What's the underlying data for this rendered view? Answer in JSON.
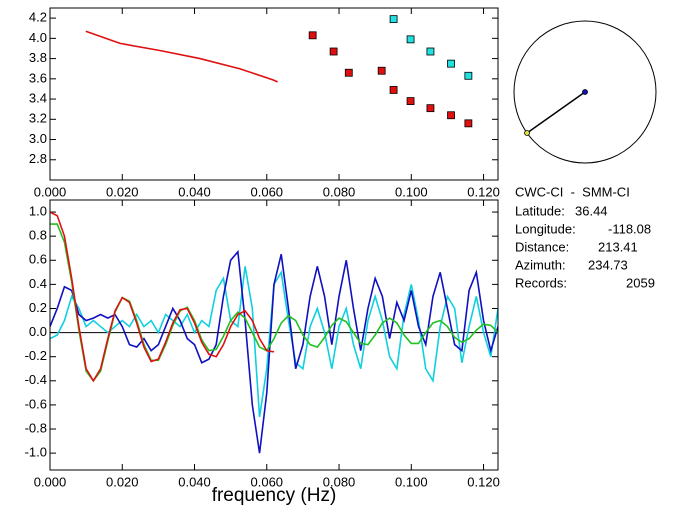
{
  "chart_data": [
    {
      "type": "scatter",
      "xlim": [
        0,
        0.124
      ],
      "ylim": [
        2.6,
        4.3
      ],
      "xticks": [
        {
          "value": 0,
          "label": "0.000"
        },
        {
          "value": 0.02,
          "label": "0.020"
        },
        {
          "value": 0.04,
          "label": "0.040"
        },
        {
          "value": 0.06,
          "label": "0.060"
        },
        {
          "value": 0.08,
          "label": "0.080"
        },
        {
          "value": 0.1,
          "label": "0.100"
        },
        {
          "value": 0.12,
          "label": "0.120"
        }
      ],
      "yticks": [
        4.2,
        {
          "value": 4.0,
          "label": "4.0"
        },
        3.8,
        3.6,
        3.4,
        3.2,
        {
          "value": 3.0,
          "label": "3.0"
        },
        2.8
      ],
      "series": [
        {
          "color": "#e01010",
          "style": "line",
          "x": [
            0.0099,
            0.0194,
            0.0304,
            0.0415,
            0.0525,
            0.0617,
            0.063
          ],
          "values": [
            4.07,
            3.95,
            3.88,
            3.8,
            3.7,
            3.59,
            3.57
          ]
        },
        {
          "color": "#e01010",
          "style": "markers",
          "x": [
            0.0727,
            0.0785,
            0.0827,
            0.0918,
            0.0951,
            0.0998,
            0.1053,
            0.111,
            0.1158
          ],
          "values": [
            4.03,
            3.87,
            3.66,
            3.68,
            3.49,
            3.38,
            3.31,
            3.24,
            3.16
          ]
        },
        {
          "color": "#20e0e0",
          "style": "markers",
          "x": [
            0.0951,
            0.0998,
            0.1053,
            0.111,
            0.1158
          ],
          "values": [
            4.19,
            3.99,
            3.87,
            3.75,
            3.63
          ]
        }
      ]
    },
    {
      "type": "line",
      "xlabel": "frequency (Hz)",
      "xlim": [
        0,
        0.124
      ],
      "ylim": [
        -1.14,
        1.1
      ],
      "zero_line": true,
      "xticks": [
        {
          "value": 0,
          "label": "0.000"
        },
        {
          "value": 0.02,
          "label": "0.020"
        },
        {
          "value": 0.04,
          "label": "0.040"
        },
        {
          "value": 0.06,
          "label": "0.060"
        },
        {
          "value": 0.08,
          "label": "0.080"
        },
        {
          "value": 0.1,
          "label": "0.100"
        },
        {
          "value": 0.12,
          "label": "0.120"
        }
      ],
      "yticks": [
        {
          "value": 1.0,
          "label": "1.0"
        },
        0.8,
        0.6,
        0.4,
        0.2,
        {
          "value": 0,
          "label": "0.0"
        },
        -0.2,
        -0.4,
        -0.6,
        -0.8,
        {
          "value": -1.0,
          "label": "-1.0"
        }
      ],
      "x": [
        0,
        0.002,
        0.004,
        0.006,
        0.008,
        0.01,
        0.012,
        0.014,
        0.016,
        0.018,
        0.02,
        0.022,
        0.024,
        0.026,
        0.028,
        0.03,
        0.032,
        0.034,
        0.036,
        0.038,
        0.04,
        0.042,
        0.044,
        0.046,
        0.048,
        0.05,
        0.052,
        0.054,
        0.056,
        0.058,
        0.06,
        0.062,
        0.064,
        0.066,
        0.068,
        0.07,
        0.072,
        0.074,
        0.076,
        0.078,
        0.08,
        0.082,
        0.084,
        0.086,
        0.088,
        0.09,
        0.092,
        0.094,
        0.096,
        0.098,
        0.1,
        0.102,
        0.104,
        0.106,
        0.108,
        0.11,
        0.112,
        0.114,
        0.116,
        0.118,
        0.12,
        0.122,
        0.124
      ],
      "series": [
        {
          "color": "#10d0e0",
          "values": [
            -0.05,
            -0.02,
            0.1,
            0.3,
            0.2,
            0.05,
            0.1,
            0.05,
            0.0,
            0.05,
            0.1,
            0.05,
            0.15,
            0.05,
            0.1,
            0.0,
            0.15,
            0.1,
            0.05,
            0.15,
            0.0,
            0.1,
            0.05,
            0.35,
            0.45,
            0.1,
            0.05,
            0.55,
            0.2,
            -0.7,
            -0.3,
            0.4,
            0.5,
            0.1,
            -0.25,
            -0.3,
            0.05,
            0.2,
            0.0,
            -0.3,
            0.05,
            0.2,
            -0.1,
            -0.3,
            0.1,
            0.3,
            0.1,
            -0.2,
            -0.3,
            0.15,
            0.4,
            0.1,
            -0.3,
            -0.4,
            0.05,
            0.3,
            0.2,
            -0.25,
            0.05,
            0.3,
            0.0,
            -0.2,
            0.2
          ]
        },
        {
          "color": "#1010c0",
          "values": [
            0.05,
            0.2,
            0.38,
            0.35,
            0.15,
            0.1,
            0.12,
            0.15,
            0.12,
            0.15,
            0.05,
            -0.1,
            -0.12,
            -0.05,
            -0.15,
            -0.1,
            0.05,
            0.2,
            0.1,
            -0.05,
            -0.1,
            -0.25,
            -0.22,
            -0.1,
            0.3,
            0.6,
            0.67,
            0.1,
            -0.6,
            -1.0,
            -0.5,
            0.4,
            0.65,
            0.2,
            -0.3,
            -0.1,
            0.3,
            0.55,
            0.3,
            -0.1,
            0.3,
            0.6,
            0.2,
            -0.15,
            0.2,
            0.45,
            0.3,
            -0.05,
            0.25,
            0.1,
            0.35,
            0.05,
            -0.1,
            0.3,
            0.5,
            0.2,
            -0.1,
            -0.15,
            0.35,
            0.5,
            0.1,
            -0.15,
            0.05
          ]
        },
        {
          "color": "#22c022",
          "values": [
            0.9,
            0.9,
            0.75,
            0.42,
            0.02,
            -0.32,
            -0.4,
            -0.32,
            -0.07,
            0.17,
            0.29,
            0.26,
            0.1,
            -0.1,
            -0.23,
            -0.23,
            -0.1,
            0.06,
            0.18,
            0.21,
            0.1,
            -0.06,
            -0.15,
            -0.14,
            -0.03,
            0.1,
            0.17,
            0.12,
            0.0,
            -0.12,
            -0.15,
            -0.05,
            0.08,
            0.14,
            0.1,
            -0.02,
            -0.1,
            -0.12,
            -0.04,
            0.06,
            0.12,
            0.09,
            0.0,
            -0.09,
            -0.1,
            -0.02,
            0.08,
            0.12,
            0.08,
            -0.02,
            -0.09,
            -0.09,
            0.0,
            0.08,
            0.1,
            0.05,
            -0.04,
            -0.08,
            -0.05,
            0.02,
            0.07,
            0.06,
            0.0
          ]
        },
        {
          "color": "#e01010",
          "values": [
            1.0,
            0.97,
            0.8,
            0.45,
            0.05,
            -0.3,
            -0.4,
            -0.3,
            -0.05,
            0.18,
            0.29,
            0.25,
            0.08,
            -0.12,
            -0.24,
            -0.22,
            -0.08,
            0.08,
            0.19,
            0.2,
            0.08,
            -0.08,
            -0.18,
            -0.2,
            -0.1,
            0.05,
            0.15,
            0.18,
            0.1,
            -0.05,
            -0.15,
            -0.16,
            null,
            null,
            null,
            null,
            null,
            null,
            null,
            null,
            null,
            null,
            null,
            null,
            null,
            null,
            null,
            null,
            null,
            null,
            null,
            null,
            null,
            null,
            null,
            null,
            null,
            null,
            null,
            null,
            null,
            null,
            null
          ]
        }
      ]
    }
  ],
  "info": {
    "title": "CWC-CI  -  SMM-CI",
    "items": [
      {
        "label": "Latitude:",
        "value": "36.44"
      },
      {
        "label": "Longitude:",
        "value": "-118.08"
      },
      {
        "label": "Distance:",
        "value": "213.41"
      },
      {
        "label": "Azimuth:",
        "value": "234.73"
      },
      {
        "label": "Records:",
        "value": "2059"
      }
    ]
  }
}
